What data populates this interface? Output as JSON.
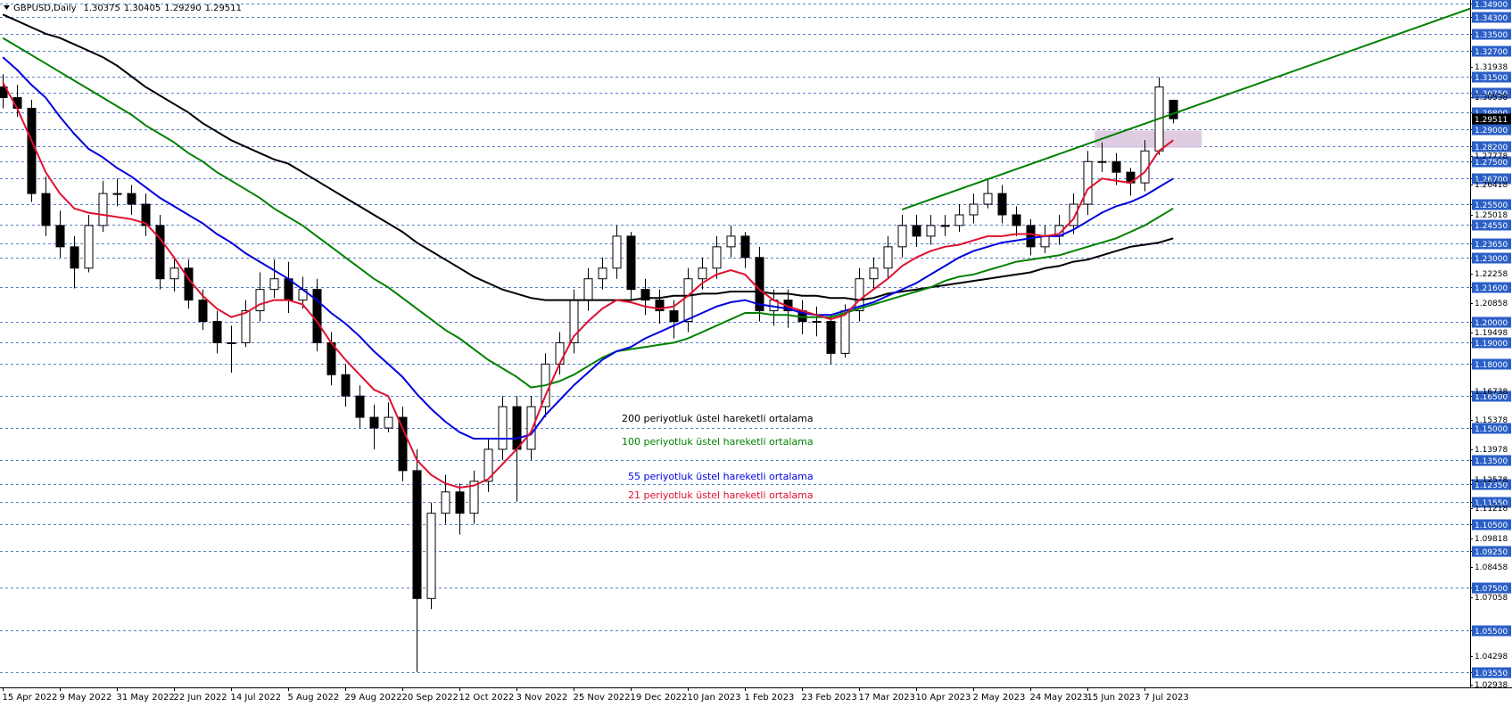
{
  "chart_data": {
    "type": "candlestick",
    "title": "GBPUSD,Daily",
    "ohlc_labels": [
      "1.30375",
      "1.30405",
      "1.29290",
      "1.29511"
    ],
    "categories": [
      "15 Apr 2022",
      null,
      null,
      null,
      "9 May 2022",
      null,
      null,
      null,
      "31 May 2022",
      null,
      null,
      null,
      "22 Jun 2022",
      null,
      null,
      null,
      "14 Jul 2022",
      null,
      null,
      null,
      "5 Aug 2022",
      null,
      null,
      null,
      "29 Aug 2022",
      null,
      null,
      null,
      "20 Sep 2022",
      null,
      null,
      null,
      "12 Oct 2022",
      null,
      null,
      null,
      "3 Nov 2022",
      null,
      null,
      null,
      "25 Nov 2022",
      null,
      null,
      null,
      "19 Dec 2022",
      null,
      null,
      null,
      "10 Jan 2023",
      null,
      null,
      null,
      "1 Feb 2023",
      null,
      null,
      null,
      "23 Feb 2023",
      null,
      null,
      null,
      "17 Mar 2023",
      null,
      null,
      null,
      "10 Apr 2023",
      null,
      null,
      null,
      "2 May 2023",
      null,
      null,
      null,
      "24 May 2023",
      null,
      null,
      null,
      "15 Jun 2023",
      null,
      null,
      null,
      "7 Jul 2023",
      null,
      null
    ],
    "open": [
      1.31,
      1.305,
      1.3,
      1.26,
      1.245,
      1.235,
      1.225,
      1.245,
      1.26,
      1.26,
      1.255,
      1.245,
      1.22,
      1.225,
      1.21,
      1.2,
      1.19,
      1.19,
      1.205,
      1.215,
      1.22,
      1.21,
      1.215,
      1.19,
      1.175,
      1.165,
      1.155,
      1.15,
      1.155,
      1.13,
      1.07,
      1.11,
      1.12,
      1.11,
      1.125,
      1.14,
      1.16,
      1.14,
      1.16,
      1.18,
      1.19,
      1.21,
      1.22,
      1.225,
      1.24,
      1.215,
      1.21,
      1.205,
      1.2,
      1.22,
      1.225,
      1.235,
      1.24,
      1.23,
      1.205,
      1.21,
      1.205,
      1.2,
      1.2,
      1.185,
      1.205,
      1.22,
      1.225,
      1.235,
      1.245,
      1.24,
      1.245,
      1.245,
      1.25,
      1.255,
      1.26,
      1.25,
      1.245,
      1.235,
      1.24,
      1.245,
      1.255,
      1.275,
      1.275,
      1.27,
      1.265,
      1.28,
      1.30375
    ],
    "high": [
      1.316,
      1.311,
      1.304,
      1.268,
      1.252,
      1.24,
      1.25,
      1.266,
      1.267,
      1.264,
      1.26,
      1.25,
      1.23,
      1.229,
      1.215,
      1.205,
      1.198,
      1.21,
      1.223,
      1.229,
      1.228,
      1.221,
      1.22,
      1.195,
      1.18,
      1.17,
      1.161,
      1.162,
      1.16,
      1.14,
      1.115,
      1.128,
      1.124,
      1.13,
      1.145,
      1.165,
      1.165,
      1.165,
      1.185,
      1.195,
      1.215,
      1.225,
      1.23,
      1.245,
      1.242,
      1.22,
      1.215,
      1.21,
      1.225,
      1.23,
      1.24,
      1.245,
      1.242,
      1.235,
      1.215,
      1.215,
      1.21,
      1.207,
      1.203,
      1.208,
      1.225,
      1.23,
      1.24,
      1.25,
      1.25,
      1.25,
      1.25,
      1.255,
      1.26,
      1.2665,
      1.264,
      1.254,
      1.248,
      1.245,
      1.25,
      1.26,
      1.28,
      1.284,
      1.279,
      1.272,
      1.285,
      1.3145,
      1.30405
    ],
    "low": [
      1.3,
      1.296,
      1.256,
      1.24,
      1.23,
      1.2155,
      1.223,
      1.242,
      1.254,
      1.25,
      1.24,
      1.215,
      1.214,
      1.206,
      1.196,
      1.185,
      1.176,
      1.188,
      1.2,
      1.211,
      1.204,
      1.206,
      1.186,
      1.17,
      1.16,
      1.15,
      1.14,
      1.148,
      1.125,
      1.0355,
      1.065,
      1.105,
      1.1,
      1.105,
      1.12,
      1.135,
      1.1155,
      1.135,
      1.155,
      1.175,
      1.185,
      1.205,
      1.215,
      1.22,
      1.21,
      1.203,
      1.199,
      1.192,
      1.195,
      1.215,
      1.22,
      1.23,
      1.225,
      1.2,
      1.198,
      1.197,
      1.194,
      1.193,
      1.18,
      1.183,
      1.2,
      1.215,
      1.22,
      1.23,
      1.235,
      1.236,
      1.24,
      1.242,
      1.246,
      1.253,
      1.246,
      1.24,
      1.231,
      1.232,
      1.236,
      1.241,
      1.25,
      1.27,
      1.264,
      1.259,
      1.261,
      1.278,
      1.2929
    ],
    "close": [
      1.305,
      1.3,
      1.26,
      1.245,
      1.235,
      1.225,
      1.245,
      1.26,
      1.26,
      1.255,
      1.245,
      1.22,
      1.225,
      1.21,
      1.2,
      1.19,
      1.19,
      1.205,
      1.215,
      1.22,
      1.21,
      1.215,
      1.19,
      1.175,
      1.165,
      1.155,
      1.15,
      1.155,
      1.13,
      1.07,
      1.11,
      1.12,
      1.11,
      1.125,
      1.14,
      1.16,
      1.14,
      1.16,
      1.18,
      1.19,
      1.21,
      1.22,
      1.225,
      1.24,
      1.215,
      1.21,
      1.205,
      1.2,
      1.22,
      1.225,
      1.235,
      1.24,
      1.23,
      1.205,
      1.21,
      1.205,
      1.2,
      1.2,
      1.185,
      1.205,
      1.22,
      1.225,
      1.235,
      1.245,
      1.24,
      1.245,
      1.245,
      1.25,
      1.255,
      1.26,
      1.25,
      1.245,
      1.235,
      1.24,
      1.245,
      1.255,
      1.275,
      1.275,
      1.27,
      1.265,
      1.28,
      1.31,
      1.29511
    ],
    "series": [
      {
        "name": "200 periyotluk üstel hareketli ortalama",
        "color": "#000000",
        "values": [
          1.344,
          1.341,
          1.338,
          1.335,
          1.333,
          1.33,
          1.327,
          1.324,
          1.32,
          1.315,
          1.31,
          1.306,
          1.302,
          1.298,
          1.293,
          1.289,
          1.285,
          1.282,
          1.279,
          1.276,
          1.274,
          1.27,
          1.266,
          1.262,
          1.258,
          1.254,
          1.25,
          1.246,
          1.242,
          1.237,
          1.233,
          1.229,
          1.225,
          1.221,
          1.218,
          1.215,
          1.213,
          1.211,
          1.21,
          1.21,
          1.21,
          1.21,
          1.21,
          1.21,
          1.21,
          1.211,
          1.211,
          1.212,
          1.212,
          1.213,
          1.213,
          1.214,
          1.214,
          1.214,
          1.213,
          1.213,
          1.212,
          1.212,
          1.211,
          1.211,
          1.21,
          1.211,
          1.213,
          1.214,
          1.215,
          1.216,
          1.217,
          1.218,
          1.219,
          1.22,
          1.221,
          1.222,
          1.223,
          1.225,
          1.226,
          1.228,
          1.229,
          1.231,
          1.233,
          1.235,
          1.236,
          1.237,
          1.239
        ]
      },
      {
        "name": "100 periyotluk üstel hareketli ortalama",
        "color": "#008000",
        "values": [
          1.333,
          1.329,
          1.325,
          1.321,
          1.317,
          1.313,
          1.309,
          1.305,
          1.301,
          1.297,
          1.292,
          1.288,
          1.284,
          1.279,
          1.275,
          1.27,
          1.266,
          1.262,
          1.258,
          1.253,
          1.249,
          1.245,
          1.24,
          1.235,
          1.23,
          1.225,
          1.22,
          1.216,
          1.211,
          1.206,
          1.201,
          1.196,
          1.192,
          1.187,
          1.182,
          1.178,
          1.174,
          1.169,
          1.17,
          1.172,
          1.175,
          1.179,
          1.183,
          1.186,
          1.187,
          1.188,
          1.189,
          1.19,
          1.192,
          1.195,
          1.198,
          1.201,
          1.204,
          1.204,
          1.203,
          1.203,
          1.202,
          1.202,
          1.202,
          1.204,
          1.206,
          1.208,
          1.21,
          1.212,
          1.214,
          1.216,
          1.219,
          1.221,
          1.222,
          1.224,
          1.226,
          1.228,
          1.229,
          1.23,
          1.231,
          1.233,
          1.235,
          1.237,
          1.239,
          1.242,
          1.245,
          1.249,
          1.253
        ]
      },
      {
        "name": "55 periyotluk üstel hareketli ortalama",
        "color": "#0000e0",
        "values": [
          1.324,
          1.318,
          1.311,
          1.305,
          1.296,
          1.288,
          1.281,
          1.277,
          1.272,
          1.268,
          1.263,
          1.258,
          1.254,
          1.25,
          1.246,
          1.241,
          1.237,
          1.232,
          1.228,
          1.224,
          1.22,
          1.215,
          1.21,
          1.204,
          1.199,
          1.193,
          1.186,
          1.18,
          1.174,
          1.166,
          1.159,
          1.153,
          1.148,
          1.145,
          1.145,
          1.145,
          1.145,
          1.147,
          1.156,
          1.163,
          1.17,
          1.176,
          1.182,
          1.186,
          1.188,
          1.192,
          1.195,
          1.198,
          1.201,
          1.204,
          1.207,
          1.209,
          1.21,
          1.208,
          1.207,
          1.206,
          1.204,
          1.203,
          1.203,
          1.205,
          1.207,
          1.209,
          1.212,
          1.215,
          1.218,
          1.222,
          1.226,
          1.23,
          1.233,
          1.235,
          1.237,
          1.238,
          1.239,
          1.24,
          1.24,
          1.243,
          1.247,
          1.251,
          1.254,
          1.256,
          1.259,
          1.263,
          1.267
        ]
      },
      {
        "name": "21 periyotluk üstel hareketli ortalama",
        "color": "#e0102f",
        "values": [
          1.312,
          1.3,
          1.285,
          1.27,
          1.26,
          1.253,
          1.251,
          1.25,
          1.249,
          1.248,
          1.246,
          1.239,
          1.23,
          1.22,
          1.212,
          1.206,
          1.202,
          1.204,
          1.208,
          1.21,
          1.21,
          1.208,
          1.2,
          1.19,
          1.182,
          1.175,
          1.168,
          1.165,
          1.15,
          1.135,
          1.128,
          1.124,
          1.122,
          1.123,
          1.126,
          1.133,
          1.14,
          1.148,
          1.165,
          1.18,
          1.193,
          1.2,
          1.206,
          1.21,
          1.209,
          1.207,
          1.206,
          1.207,
          1.212,
          1.218,
          1.222,
          1.224,
          1.222,
          1.215,
          1.21,
          1.207,
          1.205,
          1.203,
          1.201,
          1.203,
          1.21,
          1.215,
          1.22,
          1.226,
          1.23,
          1.233,
          1.235,
          1.236,
          1.238,
          1.24,
          1.24,
          1.241,
          1.241,
          1.24,
          1.241,
          1.248,
          1.262,
          1.267,
          1.266,
          1.265,
          1.27,
          1.28,
          1.285
        ]
      }
    ],
    "trendline": {
      "x": [
        63,
        103
      ],
      "values": [
        1.2525,
        1.3472
      ],
      "color": "#008000"
    },
    "zone": {
      "x": [
        76.5,
        84
      ],
      "values": [
        1.2815,
        1.2895
      ],
      "color": "#d9c3dd"
    },
    "ylim": [
      1.0283,
      1.3508
    ],
    "yticks": [
      {
        "value": 1.349,
        "label": "1.34900"
      },
      {
        "value": 1.343,
        "label": "1.34300"
      },
      {
        "value": 1.335,
        "label": "1.33500"
      },
      {
        "value": 1.327,
        "label": "1.32700"
      },
      {
        "value": 1.315,
        "label": "1.31500"
      },
      {
        "value": 1.3075,
        "label": "1.30750"
      },
      {
        "value": 1.298,
        "label": "1.29800"
      },
      {
        "value": 1.29,
        "label": "1.29000"
      },
      {
        "value": 1.282,
        "label": "1.28200"
      },
      {
        "value": 1.275,
        "label": "1.27500"
      },
      {
        "value": 1.267,
        "label": "1.26700"
      },
      {
        "value": 1.255,
        "label": "1.25500"
      },
      {
        "value": 1.2455,
        "label": "1.24550"
      },
      {
        "value": 1.2365,
        "label": "1.23650"
      },
      {
        "value": 1.23,
        "label": "1.23000"
      },
      {
        "value": 1.216,
        "label": "1.21600"
      },
      {
        "value": 1.2,
        "label": "1.20000"
      },
      {
        "value": 1.19,
        "label": "1.19000"
      },
      {
        "value": 1.18,
        "label": "1.18000"
      },
      {
        "value": 1.165,
        "label": "1.16500"
      },
      {
        "value": 1.15,
        "label": "1.15000"
      },
      {
        "value": 1.135,
        "label": "1.13500"
      },
      {
        "value": 1.1235,
        "label": "1.12350"
      },
      {
        "value": 1.1155,
        "label": "1.11550"
      },
      {
        "value": 1.105,
        "label": "1.10500"
      },
      {
        "value": 1.0925,
        "label": "1.09250"
      },
      {
        "value": 1.075,
        "label": "1.07500"
      },
      {
        "value": 1.055,
        "label": "1.05500"
      },
      {
        "value": 1.0355,
        "label": "1.03550"
      }
    ],
    "minor_yticks": [
      1.31938,
      1.30538,
      1.27778,
      1.26418,
      1.25018,
      1.22258,
      1.20858,
      1.19498,
      1.16738,
      1.15378,
      1.13978,
      1.12578,
      1.11218,
      1.09818,
      1.08458,
      1.07058,
      1.04298,
      1.02938
    ],
    "grid": true,
    "up_color": "#ffffff",
    "down_color": "#000000"
  }
}
